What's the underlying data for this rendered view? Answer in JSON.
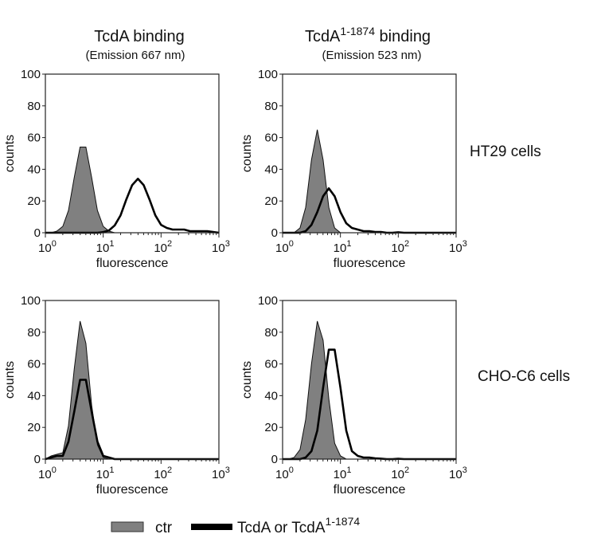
{
  "column_titles": [
    {
      "title": "TcdA binding",
      "title_sup": "",
      "title_suffix": "",
      "subtitle": "(Emission 667 nm)"
    },
    {
      "title": "TcdA",
      "title_sup": "1-1874",
      "title_suffix": " binding",
      "subtitle": "(Emission 523 nm)"
    }
  ],
  "row_labels": [
    "HT29 cells",
    "CHO-C6 cells"
  ],
  "legend": {
    "items": [
      {
        "label": "ctr",
        "sup": "",
        "color": "#808080",
        "style": "filled"
      },
      {
        "label": "TcdA or TcdA",
        "sup": "1-1874",
        "color": "#000000",
        "style": "line"
      }
    ]
  },
  "chart_data": [
    {
      "type": "area",
      "panel": "HT29 / TcdA binding",
      "xlabel": "fluorescence",
      "ylabel": "counts",
      "xscale": "log",
      "xlim": [
        1,
        1000
      ],
      "ylim": [
        0,
        100
      ],
      "yticks": [
        "0",
        "20",
        "40",
        "60",
        "80",
        "100"
      ],
      "xticks": [
        {
          "base": "10",
          "exp": "0"
        },
        {
          "base": "10",
          "exp": "1"
        },
        {
          "base": "10",
          "exp": "2"
        },
        {
          "base": "10",
          "exp": "3"
        }
      ],
      "x": [
        1,
        1.26,
        1.58,
        2,
        2.51,
        3.16,
        3.98,
        5.01,
        6.31,
        7.94,
        10,
        12.6,
        15.8,
        20,
        25.1,
        31.6,
        39.8,
        50.1,
        63.1,
        79.4,
        100,
        126,
        158,
        200,
        251,
        316,
        398,
        501,
        631,
        794,
        1000
      ],
      "series": [
        {
          "name": "ctr",
          "values": [
            0,
            0,
            1,
            4,
            14,
            35,
            54,
            54,
            35,
            14,
            4,
            1,
            0,
            0,
            0,
            0,
            0,
            0,
            0,
            0,
            0,
            0,
            0,
            0,
            0,
            0,
            0,
            0,
            0,
            0,
            0
          ]
        },
        {
          "name": "TcdA or TcdA1-1874",
          "values": [
            0,
            0,
            0,
            0,
            0,
            0,
            0,
            0,
            0,
            0,
            0.4,
            1.5,
            4.6,
            11,
            21,
            30,
            34,
            30,
            21,
            11,
            5,
            3,
            2,
            2,
            2,
            1,
            1,
            1,
            1,
            0.5,
            0
          ]
        }
      ]
    },
    {
      "type": "area",
      "panel": "HT29 / TcdA1-1874 binding",
      "xlabel": "fluorescence",
      "ylabel": "counts",
      "xscale": "log",
      "xlim": [
        1,
        1000
      ],
      "ylim": [
        0,
        100
      ],
      "yticks": [
        "0",
        "20",
        "40",
        "60",
        "80",
        "100"
      ],
      "xticks": [
        {
          "base": "10",
          "exp": "0"
        },
        {
          "base": "10",
          "exp": "1"
        },
        {
          "base": "10",
          "exp": "2"
        },
        {
          "base": "10",
          "exp": "3"
        }
      ],
      "x": [
        1,
        1.26,
        1.58,
        2,
        2.51,
        3.16,
        3.98,
        5.01,
        6.31,
        7.94,
        10,
        12.6,
        15.8,
        20,
        25.1,
        31.6,
        39.8,
        50.1,
        63.1,
        79.4,
        100,
        126,
        158,
        200,
        251,
        316,
        398,
        501,
        631,
        794,
        1000
      ],
      "series": [
        {
          "name": "ctr",
          "values": [
            0,
            0,
            0,
            3,
            16,
            46,
            65,
            46,
            16,
            3,
            0,
            0,
            0,
            0,
            0,
            0,
            0,
            0,
            0,
            0,
            0,
            0,
            0,
            0,
            0,
            0,
            0,
            0,
            0,
            0,
            0
          ]
        },
        {
          "name": "TcdA or TcdA1-1874",
          "values": [
            0,
            0,
            0,
            0,
            1,
            5,
            13,
            23,
            28,
            23,
            13,
            6,
            3,
            2,
            1,
            1,
            0.5,
            0.5,
            0,
            0,
            0.3,
            0,
            0,
            0,
            0,
            0,
            0,
            0,
            0,
            0,
            0
          ]
        }
      ]
    },
    {
      "type": "area",
      "panel": "CHO-C6 / TcdA binding",
      "xlabel": "fluorescence",
      "ylabel": "counts",
      "xscale": "log",
      "xlim": [
        1,
        1000
      ],
      "ylim": [
        0,
        100
      ],
      "yticks": [
        "0",
        "20",
        "40",
        "60",
        "80",
        "100"
      ],
      "xticks": [
        {
          "base": "10",
          "exp": "0"
        },
        {
          "base": "10",
          "exp": "1"
        },
        {
          "base": "10",
          "exp": "2"
        },
        {
          "base": "10",
          "exp": "3"
        }
      ],
      "x": [
        1,
        1.26,
        1.58,
        2,
        2.51,
        3.16,
        3.98,
        5.01,
        6.31,
        7.94,
        10,
        12.6,
        15.8,
        20,
        25.1,
        31.6,
        39.8,
        50.1,
        63.1,
        79.4,
        100,
        126,
        158,
        200,
        251,
        316,
        398,
        501,
        631,
        794,
        1000
      ],
      "series": [
        {
          "name": "ctr",
          "values": [
            0,
            2,
            3,
            4,
            21,
            57,
            87,
            73,
            34,
            9,
            1,
            0,
            0,
            0,
            0,
            0,
            0,
            0,
            0,
            0,
            0,
            0,
            0,
            0,
            0,
            0,
            0,
            0,
            0,
            0,
            0
          ]
        },
        {
          "name": "TcdA or TcdA1-1874",
          "values": [
            0,
            1,
            2,
            2,
            11,
            30,
            50,
            50,
            30,
            11,
            2,
            1,
            0,
            0,
            0,
            0,
            0,
            0,
            0,
            0,
            0,
            0,
            0,
            0,
            0,
            0,
            0,
            0,
            0,
            0,
            0
          ]
        }
      ]
    },
    {
      "type": "area",
      "panel": "CHO-C6 / TcdA1-1874 binding",
      "xlabel": "fluorescence",
      "ylabel": "counts",
      "xscale": "log",
      "xlim": [
        1,
        1000
      ],
      "ylim": [
        0,
        100
      ],
      "yticks": [
        "0",
        "20",
        "40",
        "60",
        "80",
        "100"
      ],
      "xticks": [
        {
          "base": "10",
          "exp": "0"
        },
        {
          "base": "10",
          "exp": "1"
        },
        {
          "base": "10",
          "exp": "2"
        },
        {
          "base": "10",
          "exp": "3"
        }
      ],
      "x": [
        1,
        1.26,
        1.58,
        2,
        2.51,
        3.16,
        3.98,
        5.01,
        6.31,
        7.94,
        10,
        12.6,
        15.8,
        20,
        25.1,
        31.6,
        39.8,
        50.1,
        63.1,
        79.4,
        100,
        126,
        158,
        200,
        251,
        316,
        398,
        501,
        631,
        794,
        1000
      ],
      "series": [
        {
          "name": "ctr",
          "values": [
            0,
            0,
            1,
            6,
            25,
            60,
            87,
            75,
            38,
            10,
            2,
            0,
            0,
            0,
            0,
            0,
            0,
            0,
            0,
            0,
            0,
            0,
            0,
            0,
            0,
            0,
            0,
            0,
            0,
            0,
            0
          ]
        },
        {
          "name": "TcdA or TcdA1-1874",
          "values": [
            0,
            0,
            0,
            0,
            1,
            5,
            18,
            45,
            69,
            69,
            45,
            18,
            5,
            2,
            1,
            1,
            0.5,
            0.3,
            0,
            0,
            0.2,
            0,
            0,
            0,
            0,
            0,
            0,
            0,
            0,
            0,
            0
          ]
        }
      ]
    }
  ]
}
